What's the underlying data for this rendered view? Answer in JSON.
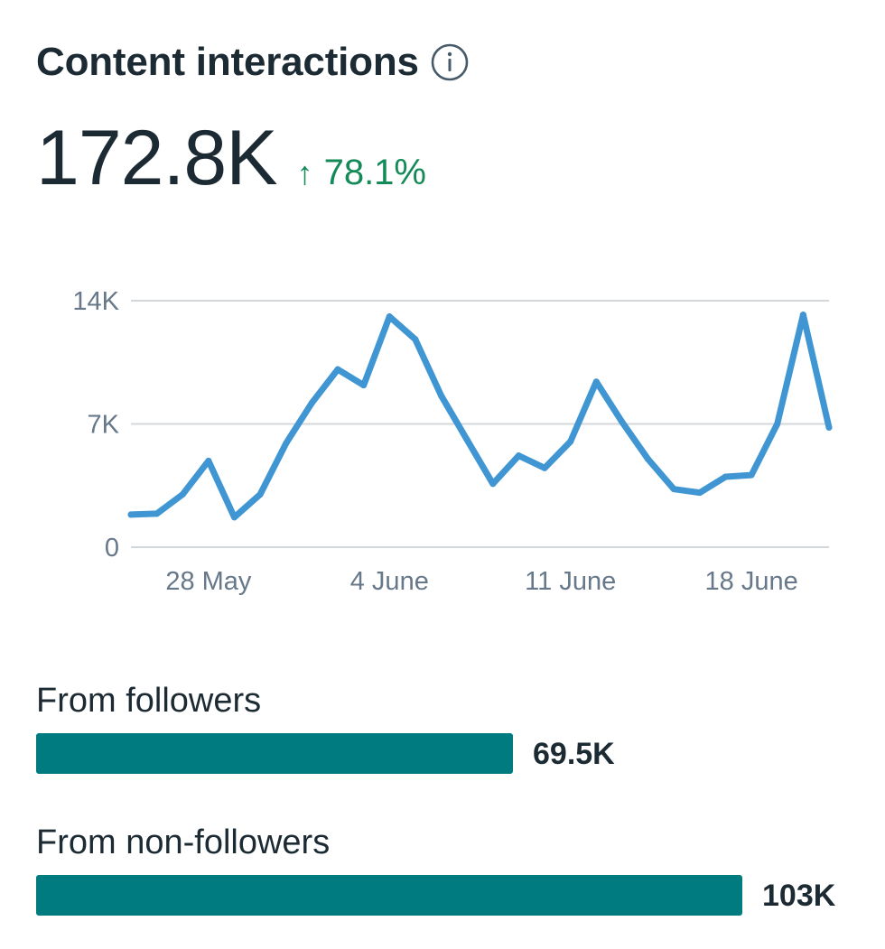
{
  "header": {
    "title": "Content interactions",
    "info_icon": "info-icon"
  },
  "metric": {
    "value": "172.8K",
    "delta": "78.1%",
    "delta_direction": "up",
    "delta_color": "#138a57"
  },
  "colors": {
    "line": "#4096d2",
    "bar": "#007b80",
    "grid": "#d4d7da",
    "text": "#1c2b33",
    "muted": "#67788a"
  },
  "chart_data": {
    "type": "line",
    "y_ticks": [
      {
        "value": 0,
        "label": "0"
      },
      {
        "value": 7000,
        "label": "7K"
      },
      {
        "value": 14000,
        "label": "14K"
      }
    ],
    "ylim": [
      0,
      14000
    ],
    "x_ticks": [
      {
        "index": 3,
        "label": "28 May"
      },
      {
        "index": 10,
        "label": "4 June"
      },
      {
        "index": 17,
        "label": "11 June"
      },
      {
        "index": 24,
        "label": "18 June"
      }
    ],
    "grid": true,
    "series": [
      {
        "values": [
          1850,
          1900,
          3000,
          4900,
          1700,
          3000,
          5900,
          8200,
          10100,
          9200,
          13100,
          11800,
          8600,
          6100,
          3600,
          5200,
          4500,
          6000,
          9400,
          7100,
          5000,
          3300,
          3100,
          4000,
          4100,
          7000,
          13200,
          6800
        ]
      }
    ]
  },
  "breakdown": [
    {
      "label": "From followers",
      "value_label": "69.5K",
      "value": 69.5
    },
    {
      "label": "From non-followers",
      "value_label": "103K",
      "value": 103
    }
  ]
}
